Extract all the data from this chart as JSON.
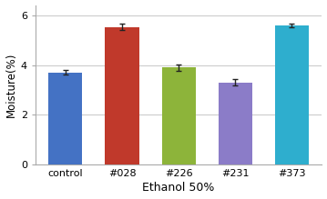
{
  "categories": [
    "control",
    "#028",
    "#226",
    "#231",
    "#373"
  ],
  "values": [
    3.7,
    5.52,
    3.9,
    3.3,
    5.58
  ],
  "errors": [
    0.1,
    0.13,
    0.12,
    0.12,
    0.07
  ],
  "bar_colors": [
    "#4472C4",
    "#C0392B",
    "#8DB43A",
    "#8B7CC8",
    "#2EAECE"
  ],
  "bar_width": 0.6,
  "ylabel": "Moisture(%)",
  "xlabel": "Ethanol 50%",
  "ylim": [
    0,
    6.4
  ],
  "yticks": [
    0,
    2,
    4,
    6
  ],
  "title": "",
  "background_color": "#ffffff",
  "plot_bg_color": "#ffffff",
  "ylabel_fontsize": 8.5,
  "xlabel_fontsize": 9,
  "tick_fontsize": 8,
  "error_capsize": 2.5,
  "error_linewidth": 1.0,
  "error_color": "#222222",
  "grid_color": "#cccccc",
  "spine_color": "#aaaaaa"
}
